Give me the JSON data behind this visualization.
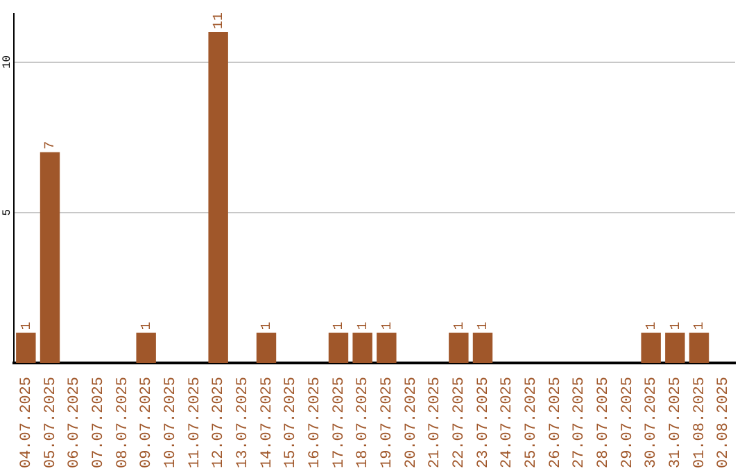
{
  "chart_data": {
    "type": "bar",
    "categories": [
      "04.07.2025",
      "05.07.2025",
      "06.07.2025",
      "07.07.2025",
      "08.07.2025",
      "09.07.2025",
      "10.07.2025",
      "11.07.2025",
      "12.07.2025",
      "13.07.2025",
      "14.07.2025",
      "15.07.2025",
      "16.07.2025",
      "17.07.2025",
      "18.07.2025",
      "19.07.2025",
      "20.07.2025",
      "21.07.2025",
      "22.07.2025",
      "23.07.2025",
      "24.07.2025",
      "25.07.2025",
      "26.07.2025",
      "27.07.2025",
      "28.07.2025",
      "29.07.2025",
      "30.07.2025",
      "31.07.2025",
      "01.08.2025",
      "02.08.2025"
    ],
    "values": [
      1,
      7,
      0,
      0,
      0,
      1,
      0,
      0,
      11,
      0,
      1,
      0,
      0,
      1,
      1,
      1,
      0,
      0,
      1,
      1,
      0,
      0,
      0,
      0,
      0,
      0,
      1,
      1,
      1,
      0
    ],
    "value_labels": [
      "1",
      "7",
      null,
      null,
      null,
      "1",
      null,
      null,
      "11",
      null,
      "1",
      null,
      null,
      "1",
      "1",
      "1",
      null,
      null,
      "1",
      "1",
      null,
      null,
      null,
      null,
      null,
      null,
      "1",
      "1",
      "1",
      null
    ],
    "color": "#a0572a",
    "ylim": [
      0,
      11.6
    ],
    "yticks": [
      5,
      10
    ],
    "grid": "y",
    "legend": false
  }
}
